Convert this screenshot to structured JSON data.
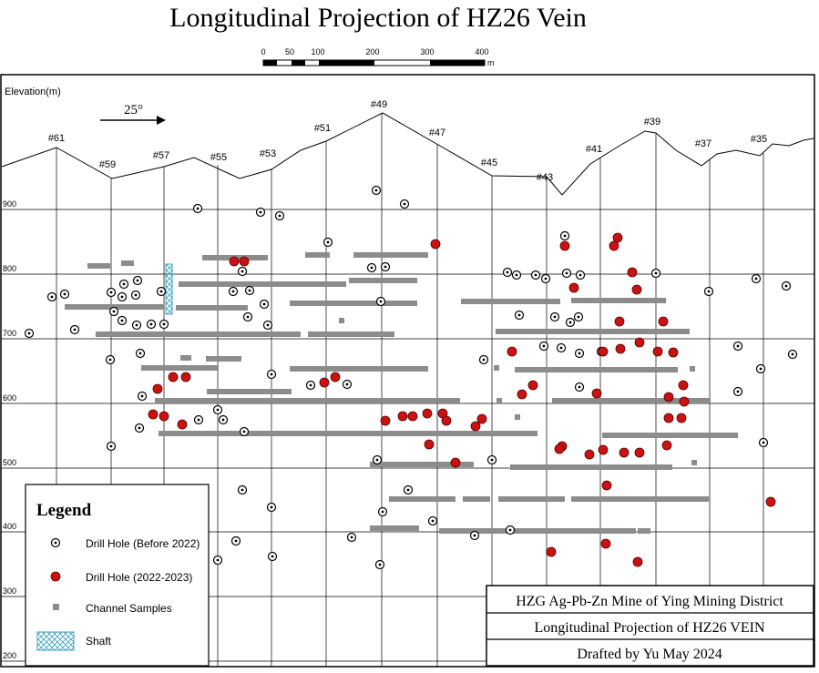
{
  "title": "Longitudinal Projection of HZ26 Vein",
  "scale_bar": {
    "ticks": [
      "0",
      "50",
      "100",
      "200",
      "300",
      "400"
    ],
    "unit": "m"
  },
  "axis": {
    "label": "Elevation(m)",
    "elevations": [
      "900",
      "800",
      "700",
      "600",
      "500",
      "400",
      "300",
      "200"
    ]
  },
  "direction": {
    "angle_label": "25°"
  },
  "exploration_lines": [
    "#61",
    "#59",
    "#57",
    "#55",
    "#53",
    "#51",
    "#49",
    "#47",
    "#45",
    "#43",
    "#41",
    "#39",
    "#37",
    "#35"
  ],
  "legend": {
    "title": "Legend",
    "items": [
      {
        "label": "Drill Hole (Before 2022)",
        "icon": "open-circle-dot-icon"
      },
      {
        "label": "Drill Hole (2022-2023)",
        "icon": "red-filled-circle-icon"
      },
      {
        "label": "Channel Samples",
        "icon": "gray-square-icon"
      },
      {
        "label": "Shaft",
        "icon": "crosshatch-rect-icon"
      }
    ]
  },
  "title_block": {
    "line1": "HZG Ag-Pb-Zn Mine of Ying Mining District",
    "line2": "Longitudinal Projection of  HZ26  VEIN",
    "line3": "Drafted by Yu May 2024"
  },
  "colors": {
    "new_hole": "#cc1111",
    "channel": "#8c8c8c",
    "shaft": "#3aa0c0",
    "grid": "#000000"
  }
}
